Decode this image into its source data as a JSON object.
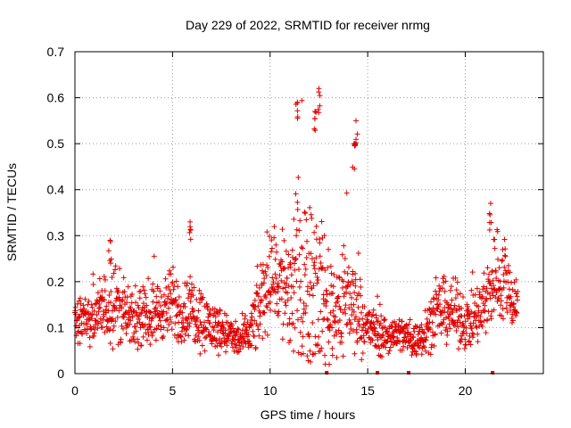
{
  "chart_data": {
    "type": "scatter",
    "title": "Day 229 of 2022, SRMTID for receiver nrmg",
    "xlabel": "GPS time / hours",
    "ylabel": "SRMTID / TECUs",
    "xlim": [
      0,
      24
    ],
    "ylim": [
      0,
      0.7
    ],
    "xticks": [
      0,
      5,
      10,
      15,
      20
    ],
    "yticks": [
      0,
      0.1,
      0.2,
      0.3,
      0.4,
      0.5,
      0.6,
      0.7
    ],
    "xtick_labels": [
      "0",
      "5",
      "10",
      "15",
      "20"
    ],
    "ytick_labels": [
      "0",
      "0.1",
      "0.2",
      "0.3",
      "0.4",
      "0.5",
      "0.6",
      "0.7"
    ],
    "grid": true,
    "marker": "plus",
    "series_color": "#e00000",
    "series_name": "SRMTID",
    "envelope": {
      "x": [
        0,
        0.5,
        1,
        1.5,
        2,
        2.5,
        3,
        3.5,
        4,
        4.5,
        5,
        5.5,
        6,
        6.5,
        7,
        7.5,
        8,
        8.5,
        9,
        9.5,
        10,
        10.5,
        11,
        11.5,
        12,
        12.5,
        13,
        13.5,
        14,
        14.5,
        15,
        15.5,
        16,
        16.5,
        17,
        17.5,
        18,
        18.5,
        19,
        19.5,
        20,
        20.5,
        21,
        21.5,
        22,
        22.5
      ],
      "base": [
        0.12,
        0.11,
        0.13,
        0.14,
        0.16,
        0.13,
        0.11,
        0.12,
        0.13,
        0.14,
        0.15,
        0.13,
        0.14,
        0.12,
        0.1,
        0.1,
        0.08,
        0.07,
        0.09,
        0.15,
        0.22,
        0.2,
        0.18,
        0.2,
        0.22,
        0.18,
        0.15,
        0.14,
        0.17,
        0.13,
        0.1,
        0.09,
        0.08,
        0.09,
        0.08,
        0.07,
        0.1,
        0.13,
        0.14,
        0.13,
        0.11,
        0.12,
        0.14,
        0.22,
        0.2,
        0.16
      ],
      "spread": [
        0.04,
        0.04,
        0.05,
        0.06,
        0.07,
        0.05,
        0.04,
        0.04,
        0.05,
        0.05,
        0.06,
        0.05,
        0.06,
        0.05,
        0.04,
        0.04,
        0.03,
        0.03,
        0.04,
        0.07,
        0.08,
        0.09,
        0.14,
        0.16,
        0.15,
        0.12,
        0.1,
        0.09,
        0.12,
        0.06,
        0.04,
        0.04,
        0.03,
        0.03,
        0.03,
        0.03,
        0.04,
        0.05,
        0.05,
        0.05,
        0.04,
        0.05,
        0.06,
        0.08,
        0.07,
        0.05
      ],
      "count_per_hour": 70,
      "end_x": 22.7
    },
    "peaks": [
      {
        "x": 12.5,
        "y": 0.62
      },
      {
        "x": 12.3,
        "y": 0.57
      },
      {
        "x": 11.4,
        "y": 0.59
      },
      {
        "x": 14.4,
        "y": 0.55
      },
      {
        "x": 14.3,
        "y": 0.5
      },
      {
        "x": 21.3,
        "y": 0.37
      },
      {
        "x": 5.9,
        "y": 0.33
      },
      {
        "x": 1.8,
        "y": 0.29
      }
    ],
    "gap_markers_x": [
      12.9,
      15.5,
      17.1,
      21.4
    ]
  }
}
